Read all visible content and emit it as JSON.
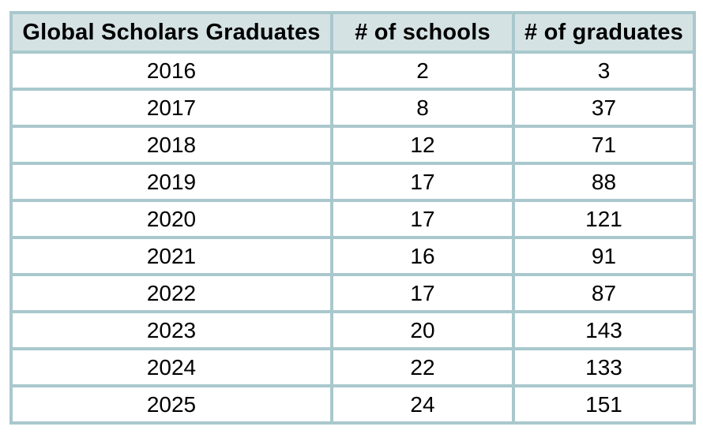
{
  "chart_data": {
    "type": "table",
    "title": "Global Scholars Graduates",
    "columns": [
      "Global Scholars Graduates",
      "# of schools",
      "# of graduates"
    ],
    "rows": [
      [
        "2016",
        "2",
        "3"
      ],
      [
        "2017",
        "8",
        "37"
      ],
      [
        "2018",
        "12",
        "71"
      ],
      [
        "2019",
        "17",
        "88"
      ],
      [
        "2020",
        "17",
        "121"
      ],
      [
        "2021",
        "16",
        "91"
      ],
      [
        "2022",
        "17",
        "87"
      ],
      [
        "2023",
        "20",
        "143"
      ],
      [
        "2024",
        "22",
        "133"
      ],
      [
        "2025",
        "24",
        "151"
      ]
    ],
    "layout_hints": {
      "header_position": "top",
      "alignment": "center",
      "grid": "on"
    }
  },
  "colors": {
    "header_bg": "#d5e2e3",
    "border": "#a9c8cd",
    "row_bg": "#ffffff",
    "text": "#000000",
    "page_bg": "#ffffff"
  }
}
